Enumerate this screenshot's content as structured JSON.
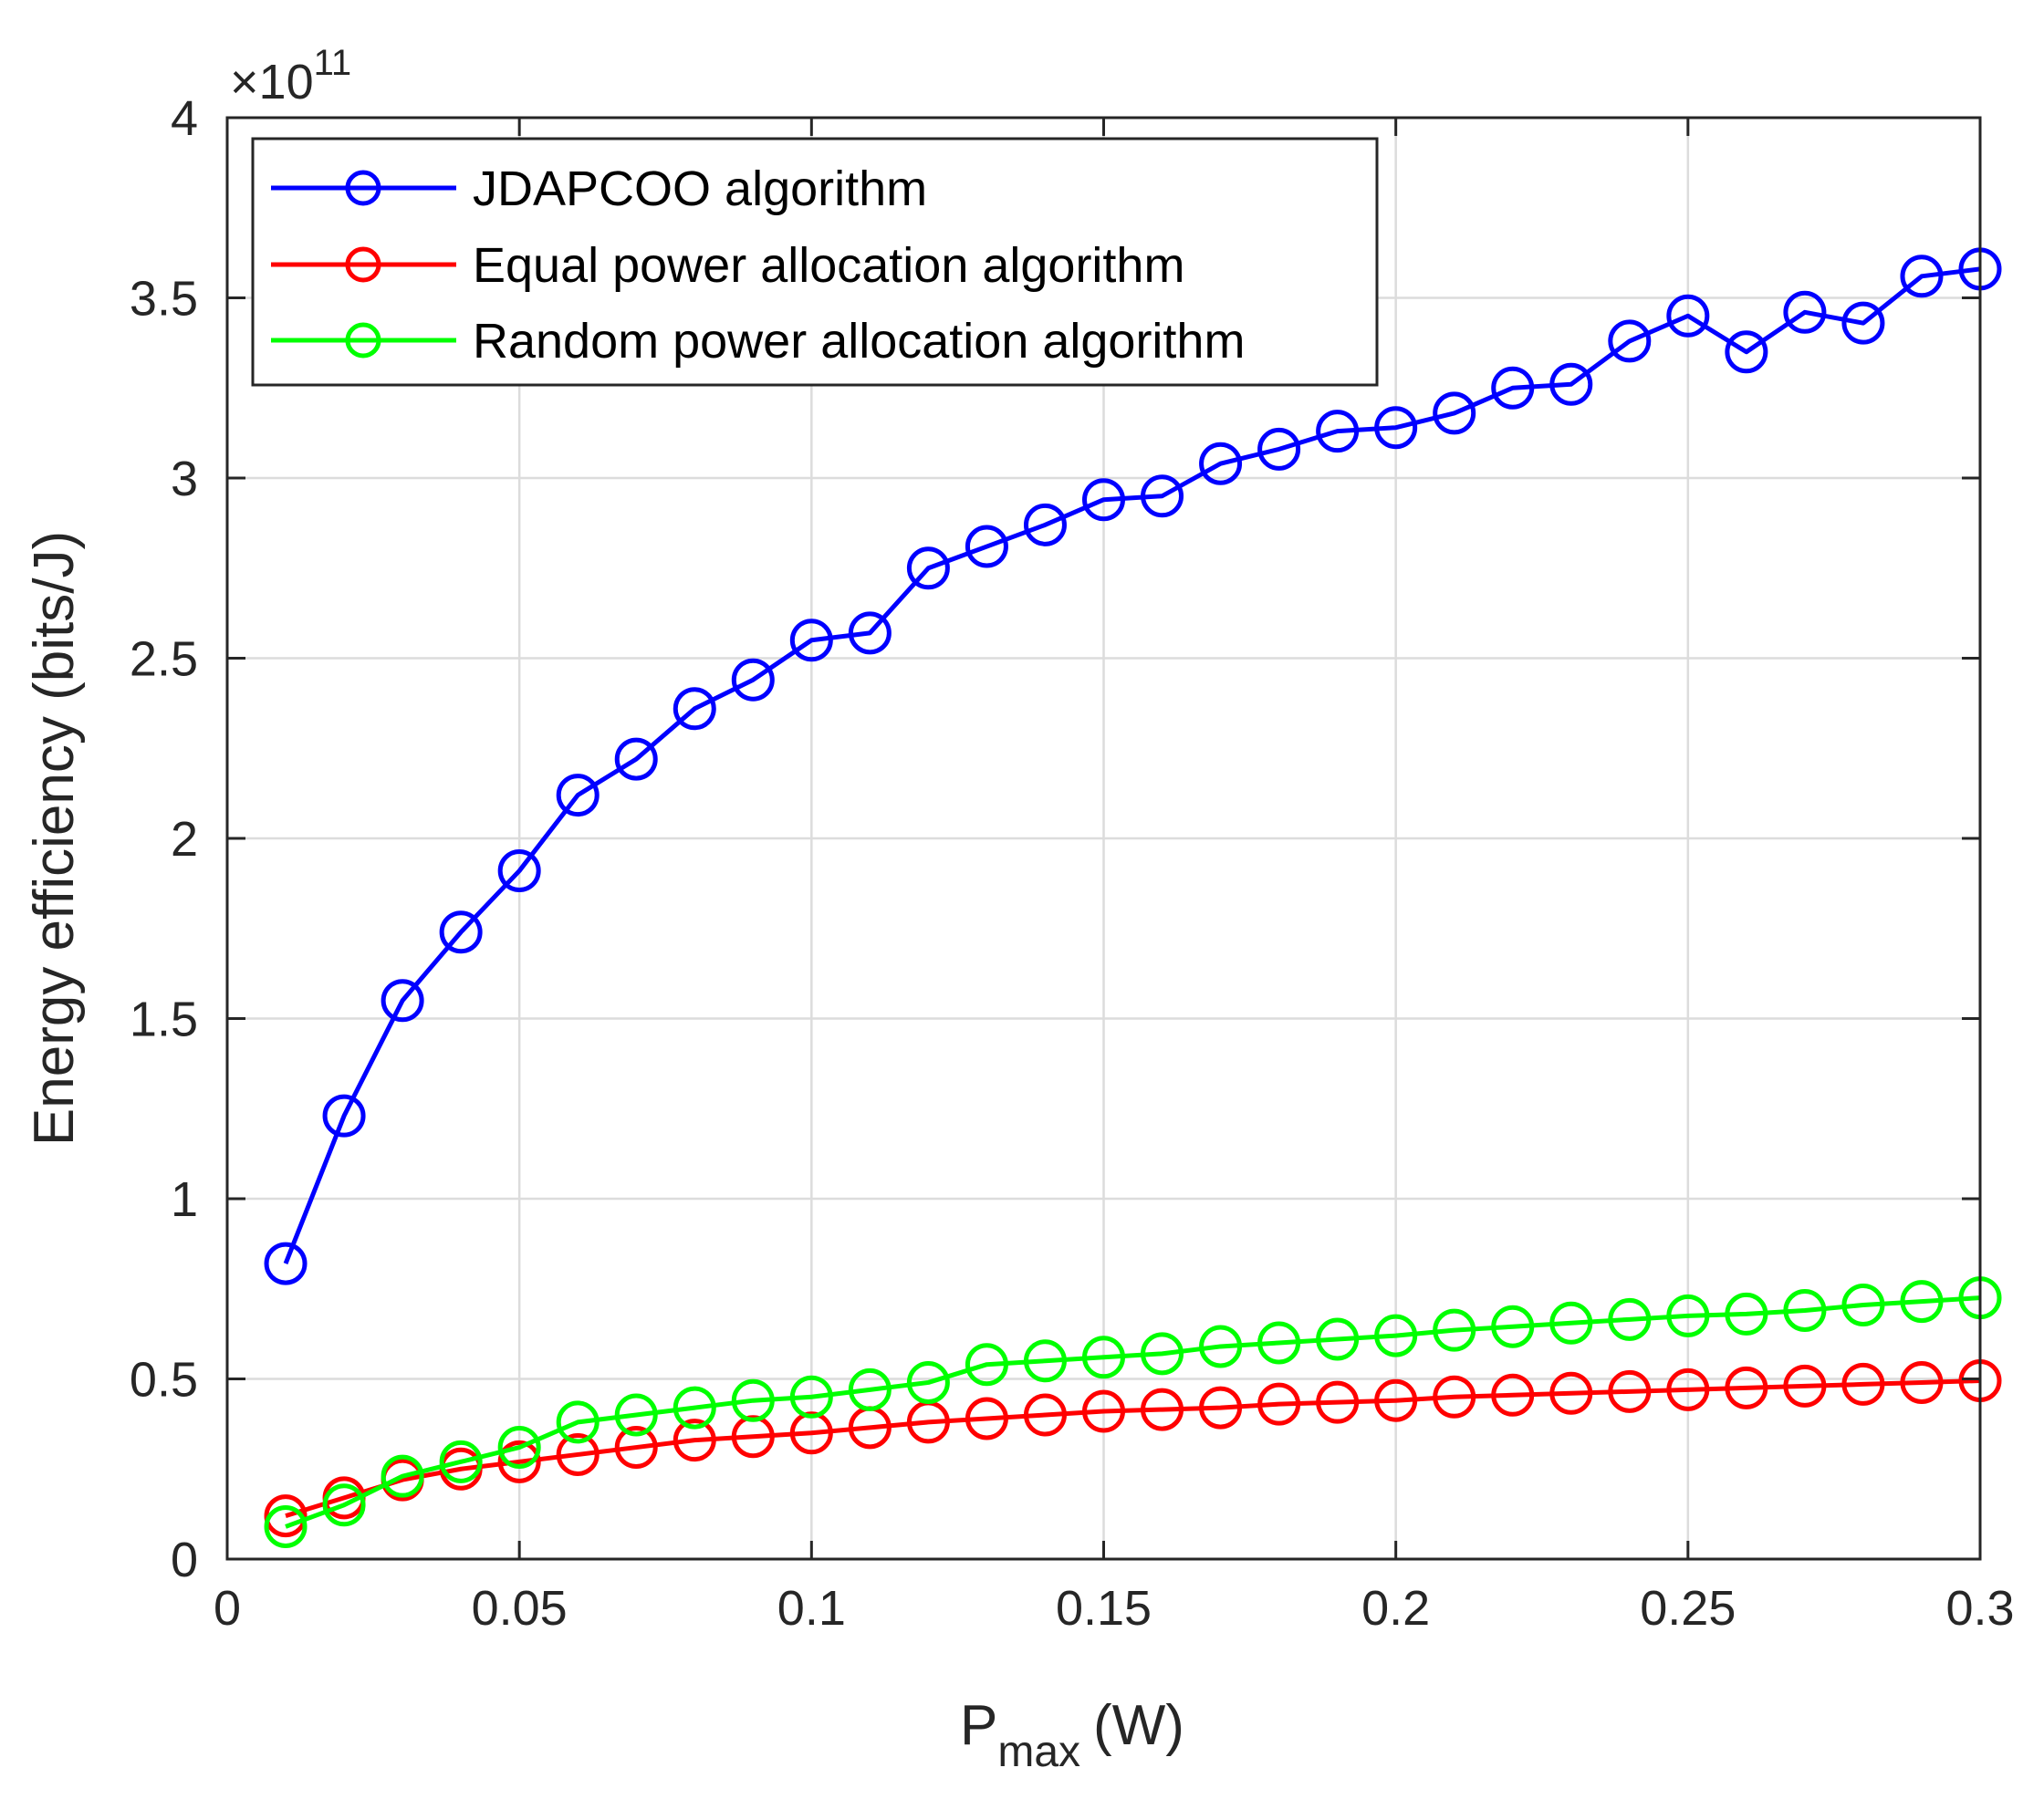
{
  "chart_data": {
    "type": "line",
    "title": "",
    "xlabel": "P",
    "xlabel_subscript": "max",
    "xlabel_unit": "(W)",
    "ylabel": "Energy efficiency (bits/J)",
    "y_exponent_base": "×10",
    "y_exponent_power": "11",
    "xlim": [
      0,
      0.3
    ],
    "ylim": [
      0,
      4
    ],
    "x_ticks": [
      0,
      0.05,
      0.1,
      0.15,
      0.2,
      0.25,
      0.3
    ],
    "x_tick_labels": [
      "0",
      "0.05",
      "0.1",
      "0.15",
      "0.2",
      "0.25",
      "0.3"
    ],
    "y_ticks": [
      0,
      0.5,
      1,
      1.5,
      2,
      2.5,
      3,
      3.5,
      4
    ],
    "y_tick_labels": [
      "0",
      "0.5",
      "1",
      "1.5",
      "2",
      "2.5",
      "3",
      "3.5",
      "4"
    ],
    "grid": true,
    "legend_position": "top-left",
    "x": [
      0.01,
      0.02,
      0.03,
      0.04,
      0.05,
      0.06,
      0.07,
      0.08,
      0.09,
      0.1,
      0.11,
      0.12,
      0.13,
      0.14,
      0.15,
      0.16,
      0.17,
      0.18,
      0.19,
      0.2,
      0.21,
      0.22,
      0.23,
      0.24,
      0.25,
      0.26,
      0.27,
      0.28,
      0.29,
      0.3
    ],
    "series": [
      {
        "name": "JDAPCOO algorithm",
        "color": "#0000ff",
        "marker": "circle",
        "values": [
          0.82,
          1.23,
          1.55,
          1.74,
          1.91,
          2.12,
          2.22,
          2.36,
          2.44,
          2.55,
          2.57,
          2.75,
          2.81,
          2.87,
          2.94,
          2.95,
          3.04,
          3.08,
          3.13,
          3.14,
          3.18,
          3.25,
          3.26,
          3.38,
          3.45,
          3.35,
          3.46,
          3.43,
          3.56,
          3.58
        ]
      },
      {
        "name": "Equal power allocation algorithm",
        "color": "#ff0000",
        "marker": "circle",
        "values": [
          0.12,
          0.17,
          0.22,
          0.25,
          0.27,
          0.29,
          0.31,
          0.33,
          0.34,
          0.35,
          0.365,
          0.38,
          0.39,
          0.4,
          0.41,
          0.415,
          0.42,
          0.43,
          0.435,
          0.44,
          0.45,
          0.455,
          0.46,
          0.465,
          0.47,
          0.475,
          0.48,
          0.485,
          0.49,
          0.495
        ]
      },
      {
        "name": "Random power allocation algorithm",
        "color": "#00ff00",
        "marker": "circle",
        "values": [
          0.09,
          0.15,
          0.23,
          0.27,
          0.31,
          0.38,
          0.4,
          0.42,
          0.44,
          0.45,
          0.47,
          0.49,
          0.54,
          0.55,
          0.56,
          0.57,
          0.59,
          0.6,
          0.61,
          0.62,
          0.635,
          0.645,
          0.655,
          0.665,
          0.675,
          0.68,
          0.69,
          0.705,
          0.715,
          0.725
        ]
      }
    ]
  }
}
